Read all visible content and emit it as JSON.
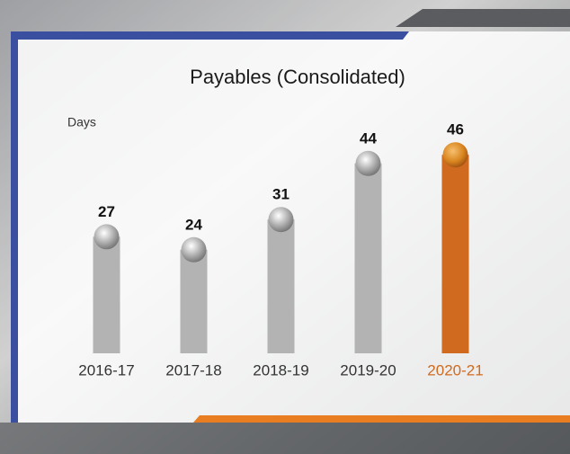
{
  "chart_data": {
    "type": "bar",
    "title": "Payables (Consolidated)",
    "y_label": "Days",
    "categories": [
      "2016-17",
      "2017-18",
      "2018-19",
      "2019-20",
      "2020-21"
    ],
    "values": [
      27,
      24,
      31,
      44,
      46
    ],
    "colors": [
      "#b3b3b3",
      "#b3b3b3",
      "#b3b3b3",
      "#b3b3b3",
      "#cf6a1f"
    ]
  }
}
